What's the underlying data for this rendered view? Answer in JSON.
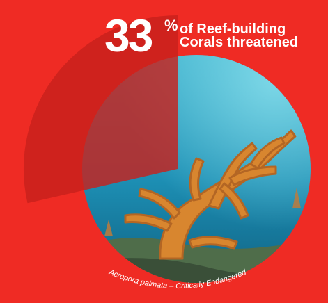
{
  "stat": {
    "value": "33",
    "unit": "%",
    "caption_line1": "of Reef-building",
    "caption_line2": "Corals threatened",
    "fraction": 0.33
  },
  "photo": {
    "caption": "Acropora palmata – Critically Endangered",
    "subject": "elkhorn-coral-photo"
  },
  "colors": {
    "background": "#ef2b24",
    "wedge": "#c8211c",
    "text": "#ffffff"
  }
}
